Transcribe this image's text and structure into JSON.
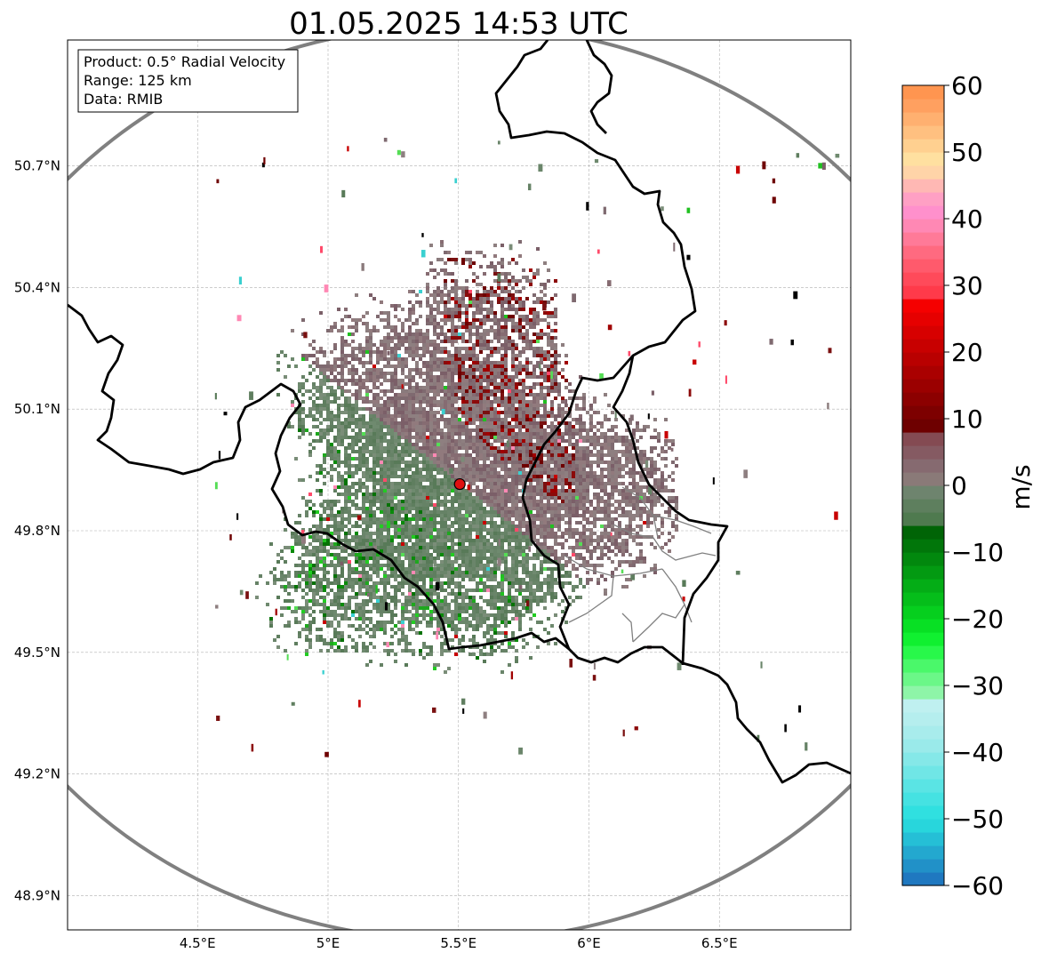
{
  "title": "01.05.2025 14:53 UTC",
  "info_box": {
    "product": "Product: 0.5° Radial Velocity",
    "range": "Range: 125 km",
    "data": "Data: RMIB"
  },
  "map": {
    "lon_range": [
      4.0,
      7.0
    ],
    "lat_range": [
      48.8,
      50.98
    ],
    "lon_ticks": [
      {
        "value": 4.5,
        "label": "4.5°E"
      },
      {
        "value": 5.0,
        "label": "5°E"
      },
      {
        "value": 5.5,
        "label": "5.5°E"
      },
      {
        "value": 6.0,
        "label": "6°E"
      },
      {
        "value": 6.5,
        "label": "6.5°E"
      }
    ],
    "lat_ticks": [
      {
        "value": 48.9,
        "label": "48.9°N"
      },
      {
        "value": 49.2,
        "label": "49.2°N"
      },
      {
        "value": 49.5,
        "label": "49.5°N"
      },
      {
        "value": 49.8,
        "label": "49.8°N"
      },
      {
        "value": 50.1,
        "label": "50.1°N"
      },
      {
        "value": 50.4,
        "label": "50.4°N"
      },
      {
        "value": 50.7,
        "label": "50.7°N"
      }
    ],
    "grid": true,
    "radar_site": {
      "lon": 5.505,
      "lat": 49.915,
      "color": "#e01010"
    },
    "range_ring_color": "#808080",
    "border_color": "#000000",
    "admin_border_color": "#808080"
  },
  "colorbar": {
    "min": -60,
    "max": 60,
    "unit": "m/s",
    "ticks": [
      {
        "value": 60,
        "label": "60"
      },
      {
        "value": 50,
        "label": "50"
      },
      {
        "value": 40,
        "label": "40"
      },
      {
        "value": 30,
        "label": "30"
      },
      {
        "value": 20,
        "label": "20"
      },
      {
        "value": 10,
        "label": "10"
      },
      {
        "value": 0,
        "label": "0"
      },
      {
        "value": -10,
        "label": "−10"
      },
      {
        "value": -20,
        "label": "−20"
      },
      {
        "value": -30,
        "label": "−30"
      },
      {
        "value": -40,
        "label": "−40"
      },
      {
        "value": -50,
        "label": "−50"
      },
      {
        "value": -60,
        "label": "−60"
      }
    ],
    "bands": [
      {
        "from": -60,
        "to": -58,
        "color": "#1f78c0"
      },
      {
        "from": -58,
        "to": -56,
        "color": "#2191c8"
      },
      {
        "from": -56,
        "to": -54,
        "color": "#23a8cf"
      },
      {
        "from": -54,
        "to": -52,
        "color": "#25bfd6"
      },
      {
        "from": -52,
        "to": -50,
        "color": "#28d6dc"
      },
      {
        "from": -50,
        "to": -48,
        "color": "#30e0e0"
      },
      {
        "from": -48,
        "to": -46,
        "color": "#45e2e2"
      },
      {
        "from": -46,
        "to": -44,
        "color": "#5ae4e4"
      },
      {
        "from": -44,
        "to": -42,
        "color": "#70e6e6"
      },
      {
        "from": -42,
        "to": -40,
        "color": "#85e8e8"
      },
      {
        "from": -40,
        "to": -38,
        "color": "#9aeaea"
      },
      {
        "from": -38,
        "to": -36,
        "color": "#a8ecec"
      },
      {
        "from": -36,
        "to": -34,
        "color": "#b5eeee"
      },
      {
        "from": -34,
        "to": -32,
        "color": "#bff0f0"
      },
      {
        "from": -32,
        "to": -30,
        "color": "#8ef5a8"
      },
      {
        "from": -30,
        "to": -28,
        "color": "#6bf788"
      },
      {
        "from": -28,
        "to": -26,
        "color": "#4af86a"
      },
      {
        "from": -26,
        "to": -24,
        "color": "#28f84a"
      },
      {
        "from": -24,
        "to": -22,
        "color": "#10f030"
      },
      {
        "from": -22,
        "to": -20,
        "color": "#08e024"
      },
      {
        "from": -20,
        "to": -18,
        "color": "#06cf1e"
      },
      {
        "from": -18,
        "to": -16,
        "color": "#05be1a"
      },
      {
        "from": -16,
        "to": -14,
        "color": "#04ad16"
      },
      {
        "from": -14,
        "to": -12,
        "color": "#039a12"
      },
      {
        "from": -12,
        "to": -10,
        "color": "#02880e"
      },
      {
        "from": -10,
        "to": -8,
        "color": "#01760a"
      },
      {
        "from": -8,
        "to": -6,
        "color": "#006406"
      },
      {
        "from": -6,
        "to": -4,
        "color": "#4f7a4f"
      },
      {
        "from": -4,
        "to": -2,
        "color": "#5e7f5e"
      },
      {
        "from": -2,
        "to": 0,
        "color": "#6e846e"
      },
      {
        "from": 0,
        "to": 2,
        "color": "#8a7a78"
      },
      {
        "from": 2,
        "to": 4,
        "color": "#866a70"
      },
      {
        "from": 4,
        "to": 6,
        "color": "#855a62"
      },
      {
        "from": 6,
        "to": 8,
        "color": "#844a52"
      },
      {
        "from": 8,
        "to": 10,
        "color": "#6e0000"
      },
      {
        "from": 10,
        "to": 12,
        "color": "#7d0000"
      },
      {
        "from": 12,
        "to": 14,
        "color": "#8c0000"
      },
      {
        "from": 14,
        "to": 16,
        "color": "#9b0000"
      },
      {
        "from": 16,
        "to": 18,
        "color": "#aa0000"
      },
      {
        "from": 18,
        "to": 20,
        "color": "#b90000"
      },
      {
        "from": 20,
        "to": 22,
        "color": "#c80000"
      },
      {
        "from": 22,
        "to": 24,
        "color": "#d70000"
      },
      {
        "from": 24,
        "to": 26,
        "color": "#e60000"
      },
      {
        "from": 26,
        "to": 28,
        "color": "#f50000"
      },
      {
        "from": 28,
        "to": 30,
        "color": "#ff3a4a"
      },
      {
        "from": 30,
        "to": 32,
        "color": "#ff4a5a"
      },
      {
        "from": 32,
        "to": 34,
        "color": "#ff5a6c"
      },
      {
        "from": 34,
        "to": 36,
        "color": "#ff6a80"
      },
      {
        "from": 36,
        "to": 38,
        "color": "#ff7a98"
      },
      {
        "from": 38,
        "to": 40,
        "color": "#ff88b4"
      },
      {
        "from": 40,
        "to": 42,
        "color": "#ff90cc"
      },
      {
        "from": 42,
        "to": 44,
        "color": "#ffa0c4"
      },
      {
        "from": 44,
        "to": 46,
        "color": "#ffb8b4"
      },
      {
        "from": 46,
        "to": 48,
        "color": "#ffd4a8"
      },
      {
        "from": 48,
        "to": 50,
        "color": "#ffe0a0"
      },
      {
        "from": 50,
        "to": 52,
        "color": "#ffd090"
      },
      {
        "from": 52,
        "to": 54,
        "color": "#ffc080"
      },
      {
        "from": 54,
        "to": 56,
        "color": "#ffb070"
      },
      {
        "from": 56,
        "to": 58,
        "color": "#ffa060"
      },
      {
        "from": 58,
        "to": 60,
        "color": "#ff9550"
      }
    ]
  }
}
